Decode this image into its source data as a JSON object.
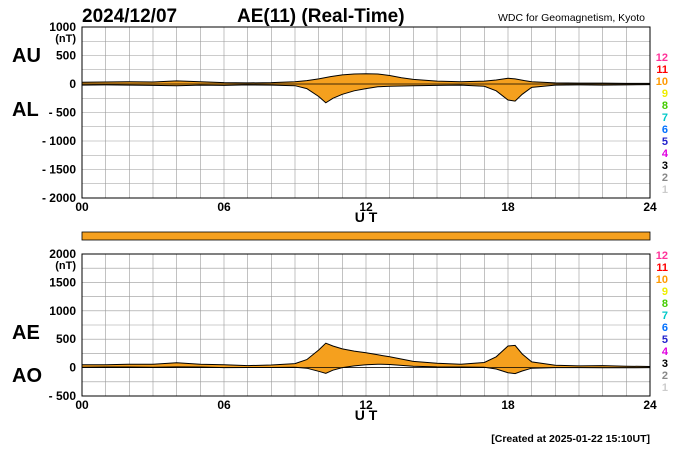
{
  "header": {
    "date": "2024/12/07",
    "title": "AE(11) (Real-Time)",
    "source": "WDC for Geomagnetism, Kyoto",
    "created": "[Created at 2025-01-22 15:10UT]"
  },
  "colors": {
    "fill": "#F5A01E",
    "line": "#000000",
    "grid": "#9a9a9a",
    "station_colors": [
      "#cccccc",
      "#888888",
      "#000000",
      "#e000e0",
      "#2222cc",
      "#0070ff",
      "#00c8c8",
      "#44cc00",
      "#eeee00",
      "#ff9900",
      "#ff0000",
      "#ff3399"
    ]
  },
  "station_numbers": [
    "1",
    "2",
    "3",
    "4",
    "5",
    "6",
    "7",
    "8",
    "9",
    "10",
    "11",
    "12"
  ],
  "status_bar": {
    "color": "#F5A01E"
  },
  "chart_data": [
    {
      "type": "area",
      "panel": "AU/AL",
      "series_labels": [
        "AU",
        "AL"
      ],
      "ylabel": "(nT)",
      "xlabel": "U T",
      "ylim": [
        -2000,
        1000
      ],
      "yticks": [
        1000,
        500,
        0,
        -500,
        -1000,
        -1500,
        -2000
      ],
      "ytick_labels": [
        "1000",
        "500",
        "0",
        "- 500",
        "- 1000",
        "- 1500",
        "- 2000"
      ],
      "xlim": [
        0,
        24
      ],
      "xticks": [
        0,
        6,
        12,
        18,
        24
      ],
      "xtick_labels": [
        "00",
        "06",
        "12",
        "18",
        "24"
      ],
      "grid": true,
      "series": [
        {
          "name": "AU",
          "x": [
            0,
            1,
            2,
            3,
            4,
            5,
            6,
            7,
            8,
            9,
            9.5,
            10,
            10.5,
            11,
            11.5,
            12,
            12.5,
            13,
            13.5,
            14,
            15,
            16,
            17,
            17.5,
            18,
            18.3,
            18.7,
            19,
            20,
            21,
            22,
            23,
            24
          ],
          "values": [
            30,
            35,
            40,
            35,
            55,
            40,
            25,
            20,
            25,
            40,
            60,
            90,
            130,
            160,
            175,
            180,
            175,
            150,
            110,
            80,
            50,
            40,
            50,
            70,
            100,
            90,
            60,
            40,
            20,
            15,
            15,
            10,
            10
          ]
        },
        {
          "name": "AL",
          "x": [
            0,
            1,
            2,
            3,
            4,
            5,
            6,
            7,
            8,
            9,
            9.5,
            10,
            10.3,
            10.6,
            11,
            11.5,
            12,
            12.5,
            13,
            14,
            15,
            16,
            17,
            17.5,
            18,
            18.3,
            18.6,
            19,
            20,
            21,
            22,
            23,
            24
          ],
          "values": [
            -20,
            -15,
            -20,
            -25,
            -30,
            -20,
            -25,
            -15,
            -20,
            -30,
            -80,
            -220,
            -330,
            -250,
            -180,
            -120,
            -80,
            -50,
            -40,
            -30,
            -25,
            -20,
            -40,
            -120,
            -280,
            -300,
            -180,
            -60,
            -20,
            -15,
            -20,
            -15,
            -10
          ]
        }
      ]
    },
    {
      "type": "area",
      "panel": "AE/AO",
      "series_labels": [
        "AE",
        "AO"
      ],
      "ylabel": "(nT)",
      "xlabel": "U T",
      "ylim": [
        -500,
        2000
      ],
      "yticks": [
        2000,
        1500,
        1000,
        500,
        0,
        -500
      ],
      "ytick_labels": [
        "2000",
        "1500",
        "1000",
        "500",
        "0",
        "- 500"
      ],
      "xlim": [
        0,
        24
      ],
      "xticks": [
        0,
        6,
        12,
        18,
        24
      ],
      "xtick_labels": [
        "00",
        "06",
        "12",
        "18",
        "24"
      ],
      "grid": true,
      "series": [
        {
          "name": "AE",
          "x": [
            0,
            1,
            2,
            3,
            4,
            5,
            6,
            7,
            8,
            9,
            9.5,
            10,
            10.3,
            10.6,
            11,
            11.5,
            12,
            12.5,
            13,
            14,
            15,
            16,
            17,
            17.5,
            18,
            18.3,
            18.6,
            19,
            20,
            21,
            22,
            23,
            24
          ],
          "values": [
            50,
            50,
            60,
            60,
            85,
            60,
            50,
            35,
            45,
            70,
            140,
            310,
            430,
            380,
            330,
            290,
            260,
            225,
            190,
            110,
            75,
            60,
            90,
            190,
            380,
            390,
            240,
            100,
            40,
            30,
            35,
            25,
            20
          ]
        },
        {
          "name": "AO",
          "x": [
            0,
            1,
            2,
            3,
            4,
            5,
            6,
            7,
            8,
            9,
            9.5,
            10,
            10.3,
            10.6,
            11,
            11.5,
            12,
            12.5,
            13,
            14,
            15,
            16,
            17,
            17.5,
            18,
            18.3,
            18.6,
            19,
            20,
            21,
            22,
            23,
            24
          ],
          "values": [
            5,
            10,
            10,
            5,
            12,
            10,
            0,
            2,
            2,
            5,
            -10,
            -65,
            -100,
            -45,
            0,
            30,
            50,
            60,
            55,
            25,
            12,
            10,
            5,
            -25,
            -90,
            -105,
            -60,
            -10,
            0,
            0,
            -3,
            -3,
            0
          ]
        }
      ]
    }
  ]
}
